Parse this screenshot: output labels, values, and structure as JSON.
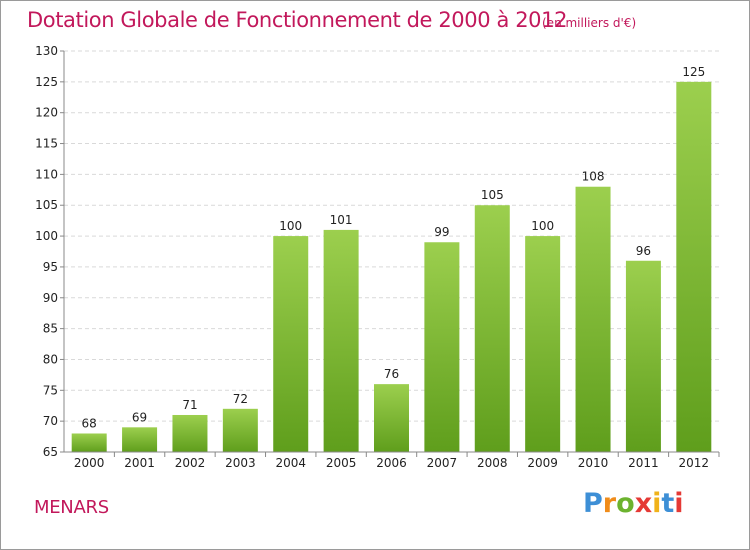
{
  "header": {
    "title": "Dotation Globale de Fonctionnement de 2000 à 2012",
    "unit": "(en milliers d'€)"
  },
  "footer": {
    "commune": "MENARS",
    "logo": {
      "text": "Proxiti"
    }
  },
  "colors": {
    "title": "#c2185b",
    "bar_top": "#9ccf4e",
    "bar_bottom": "#5f9e1c",
    "grid": "#d9d9d9",
    "axis": "#888888"
  },
  "chart_data": {
    "type": "bar",
    "title": "Dotation Globale de Fonctionnement de 2000 à 2012",
    "subtitle": "(en milliers d'€)",
    "xlabel": "",
    "ylabel": "",
    "categories": [
      "2000",
      "2001",
      "2002",
      "2003",
      "2004",
      "2005",
      "2006",
      "2007",
      "2008",
      "2009",
      "2010",
      "2011",
      "2012"
    ],
    "values": [
      68,
      69,
      71,
      72,
      100,
      101,
      76,
      99,
      105,
      100,
      108,
      96,
      125
    ],
    "ylim": [
      65,
      130
    ],
    "yticks": [
      65,
      70,
      75,
      80,
      85,
      90,
      95,
      100,
      105,
      110,
      115,
      120,
      125,
      130
    ],
    "grid": true,
    "legend": "none"
  }
}
